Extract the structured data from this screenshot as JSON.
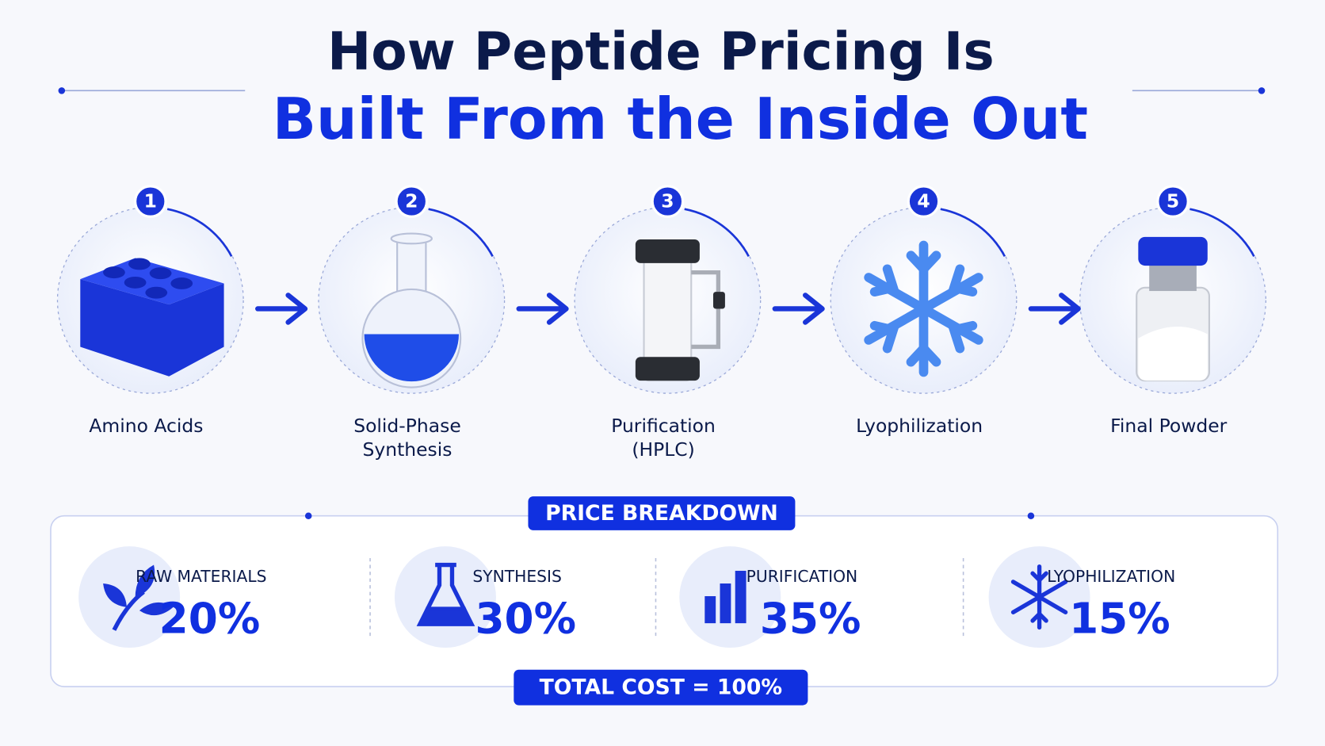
{
  "title": {
    "line1": "How Peptide Pricing Is",
    "line2": "Built From the Inside Out"
  },
  "steps": [
    {
      "number": "1",
      "label": [
        "Amino Acids"
      ]
    },
    {
      "number": "2",
      "label": [
        "Solid-Phase",
        "Synthesis"
      ]
    },
    {
      "number": "3",
      "label": [
        "Purification",
        "(HPLC)"
      ]
    },
    {
      "number": "4",
      "label": [
        "Lyophilization"
      ]
    },
    {
      "number": "5",
      "label": [
        "Final Powder"
      ]
    }
  ],
  "breakdown": {
    "title": "PRICE BREAKDOWN",
    "items": [
      {
        "label": "RAW MATERIALS",
        "value": "20%"
      },
      {
        "label": "SYNTHESIS",
        "value": "30%"
      },
      {
        "label": "PURIFICATION",
        "value": "35%"
      },
      {
        "label": "LYOPHILIZATION",
        "value": "15%"
      }
    ],
    "total": "TOTAL COST = 100%"
  }
}
